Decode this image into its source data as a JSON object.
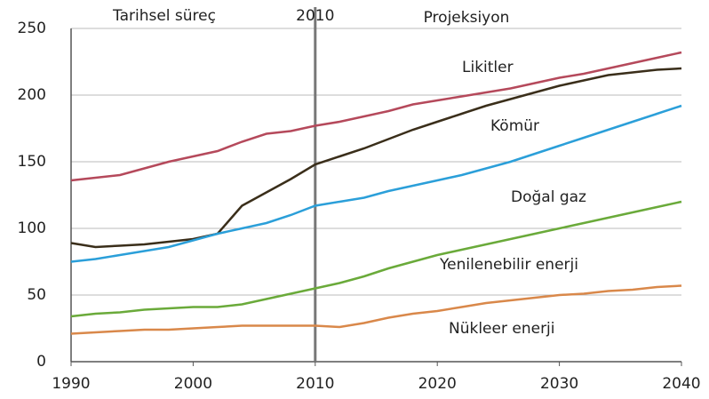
{
  "chart_data": {
    "type": "line",
    "annotations": [
      "Tarihsel süreç",
      "Projeksiyon"
    ],
    "vline": 2010,
    "x": [
      1990,
      1992,
      1994,
      1996,
      1998,
      2000,
      2002,
      2004,
      2006,
      2008,
      2010,
      2012,
      2014,
      2016,
      2018,
      2020,
      2022,
      2024,
      2026,
      2028,
      2030,
      2032,
      2034,
      2036,
      2038,
      2040
    ],
    "series": [
      {
        "name": "Likitler",
        "color": "#b5495b",
        "values": [
          136,
          138,
          140,
          145,
          150,
          154,
          158,
          165,
          171,
          173,
          177,
          180,
          184,
          188,
          193,
          196,
          199,
          202,
          205,
          209,
          213,
          216,
          220,
          224,
          228,
          232
        ]
      },
      {
        "name": "Kömür",
        "color": "#3a2e1a",
        "values": [
          89,
          86,
          87,
          88,
          90,
          92,
          96,
          117,
          127,
          137,
          148,
          154,
          160,
          167,
          174,
          180,
          186,
          192,
          197,
          202,
          207,
          211,
          215,
          217,
          219,
          220
        ]
      },
      {
        "name": "Doğal gaz",
        "color": "#2b9fd9",
        "values": [
          75,
          77,
          80,
          83,
          86,
          91,
          96,
          100,
          104,
          110,
          117,
          120,
          123,
          128,
          132,
          136,
          140,
          145,
          150,
          156,
          162,
          168,
          174,
          180,
          186,
          192
        ]
      },
      {
        "name": "Yenilenebilir enerji",
        "color": "#6aaa3a",
        "values": [
          34,
          36,
          37,
          39,
          40,
          41,
          41,
          43,
          47,
          51,
          55,
          59,
          64,
          70,
          75,
          80,
          84,
          88,
          92,
          96,
          100,
          104,
          108,
          112,
          116,
          120
        ]
      },
      {
        "name": "Nükleer enerji",
        "color": "#d9884a",
        "values": [
          21,
          22,
          23,
          24,
          24,
          25,
          26,
          27,
          27,
          27,
          27,
          26,
          29,
          33,
          36,
          38,
          41,
          44,
          46,
          48,
          50,
          51,
          53,
          54,
          56,
          57
        ]
      }
    ],
    "xlim": [
      1990,
      2040
    ],
    "xticks": [
      1990,
      2000,
      2010,
      2020,
      2030,
      2040
    ],
    "ylim": [
      0,
      250
    ],
    "yticks": [
      0,
      50,
      100,
      150,
      200,
      250
    ],
    "grid": true
  }
}
